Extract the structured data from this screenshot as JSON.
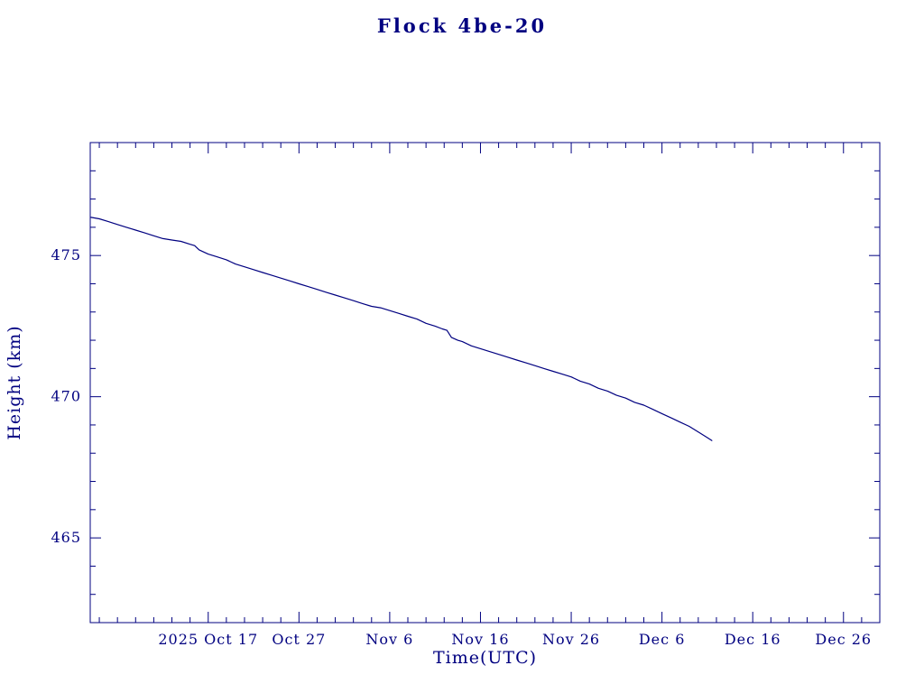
{
  "colors": {
    "ink": "#000080",
    "background": "#ffffff"
  },
  "chart_data": {
    "type": "line",
    "title": "Flock 4be-20",
    "xlabel": "Time(UTC)",
    "ylabel": "Height (km)",
    "x_unit": "days since 2025-10-01",
    "xlim": [
      3,
      90
    ],
    "ylim": [
      462,
      479
    ],
    "grid": false,
    "legend": "none",
    "x_ticks": [
      {
        "value": 16,
        "label": "2025 Oct 17"
      },
      {
        "value": 26,
        "label": "Oct 27"
      },
      {
        "value": 36,
        "label": "Nov 6"
      },
      {
        "value": 46,
        "label": "Nov 16"
      },
      {
        "value": 56,
        "label": "Nov 26"
      },
      {
        "value": 66,
        "label": "Dec 6"
      },
      {
        "value": 76,
        "label": "Dec 16"
      },
      {
        "value": 86,
        "label": "Dec 26"
      }
    ],
    "x_minor_step": 2,
    "y_ticks": [
      {
        "value": 465,
        "label": "465"
      },
      {
        "value": 470,
        "label": "470"
      },
      {
        "value": 475,
        "label": "475"
      }
    ],
    "y_minor_step": 1,
    "series": [
      {
        "name": "Flock 4be-20 height",
        "color": "#000080",
        "points": [
          [
            3.1,
            476.35
          ],
          [
            4,
            476.3
          ],
          [
            5,
            476.2
          ],
          [
            6,
            476.1
          ],
          [
            7,
            476.0
          ],
          [
            8,
            475.9
          ],
          [
            9,
            475.8
          ],
          [
            10,
            475.7
          ],
          [
            11,
            475.6
          ],
          [
            12,
            475.55
          ],
          [
            13,
            475.5
          ],
          [
            14,
            475.4
          ],
          [
            14.5,
            475.35
          ],
          [
            15,
            475.2
          ],
          [
            16,
            475.05
          ],
          [
            17,
            474.95
          ],
          [
            18,
            474.85
          ],
          [
            19,
            474.7
          ],
          [
            20,
            474.6
          ],
          [
            21,
            474.5
          ],
          [
            22,
            474.4
          ],
          [
            23,
            474.3
          ],
          [
            24,
            474.2
          ],
          [
            25,
            474.1
          ],
          [
            26,
            474.0
          ],
          [
            27,
            473.9
          ],
          [
            28,
            473.8
          ],
          [
            29,
            473.7
          ],
          [
            30,
            473.6
          ],
          [
            31,
            473.5
          ],
          [
            32,
            473.4
          ],
          [
            33,
            473.3
          ],
          [
            34,
            473.2
          ],
          [
            35,
            473.15
          ],
          [
            36,
            473.05
          ],
          [
            37,
            472.95
          ],
          [
            38,
            472.85
          ],
          [
            39,
            472.75
          ],
          [
            40,
            472.6
          ],
          [
            41,
            472.5
          ],
          [
            41.8,
            472.4
          ],
          [
            42.3,
            472.35
          ],
          [
            42.8,
            472.1
          ],
          [
            43.5,
            472.0
          ],
          [
            44,
            471.95
          ],
          [
            45,
            471.8
          ],
          [
            46,
            471.7
          ],
          [
            47,
            471.6
          ],
          [
            48,
            471.5
          ],
          [
            49,
            471.4
          ],
          [
            50,
            471.3
          ],
          [
            51,
            471.2
          ],
          [
            52,
            471.1
          ],
          [
            53,
            471.0
          ],
          [
            54,
            470.9
          ],
          [
            55,
            470.8
          ],
          [
            56,
            470.7
          ],
          [
            57,
            470.55
          ],
          [
            58,
            470.45
          ],
          [
            59,
            470.3
          ],
          [
            60,
            470.2
          ],
          [
            61,
            470.05
          ],
          [
            62,
            469.95
          ],
          [
            63,
            469.8
          ],
          [
            64,
            469.7
          ],
          [
            65,
            469.55
          ],
          [
            66,
            469.4
          ],
          [
            67,
            469.25
          ],
          [
            68,
            469.1
          ],
          [
            69,
            468.95
          ],
          [
            70,
            468.75
          ],
          [
            71,
            468.55
          ],
          [
            71.5,
            468.45
          ]
        ]
      }
    ]
  }
}
